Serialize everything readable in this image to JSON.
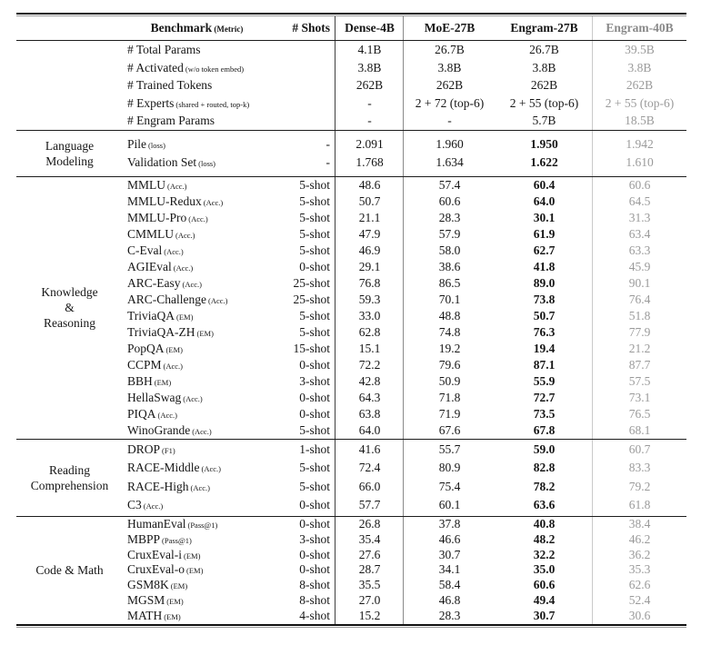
{
  "table": {
    "title_hint": "Benchmark comparison table of Dense, MoE and Engram models",
    "colors": {
      "text": "#161616",
      "muted_column": "#9a9a9a",
      "muted_header": "#8a8a8a",
      "rule_dark": "#101010",
      "vline_dark": "#3f3f3f",
      "vline_mid": "#8a8a8a",
      "vline_light": "#c9c9c9"
    },
    "header": {
      "benchmark": "Benchmark",
      "benchmark_metric": "(Metric)",
      "shots": "# Shots",
      "models": [
        "Dense-4B",
        "MoE-27B",
        "Engram-27B",
        "Engram-40B"
      ]
    },
    "sections": [
      {
        "category_lines": [],
        "bold_engram27": false,
        "rows": [
          {
            "name": "# Total Params",
            "metric": "",
            "shots": "",
            "values": [
              "4.1B",
              "26.7B",
              "26.7B",
              "39.5B"
            ]
          },
          {
            "name": "# Activated",
            "metric": "(w/o token embed)",
            "shots": "",
            "values": [
              "3.8B",
              "3.8B",
              "3.8B",
              "3.8B"
            ]
          },
          {
            "name": "# Trained Tokens",
            "metric": "",
            "shots": "",
            "values": [
              "262B",
              "262B",
              "262B",
              "262B"
            ]
          },
          {
            "name": "# Experts",
            "metric": "(shared + routed, top-k)",
            "shots": "",
            "values": [
              "-",
              "2 + 72 (top-6)",
              "2 + 55 (top-6)",
              "2 + 55 (top-6)"
            ]
          },
          {
            "name": "# Engram Params",
            "metric": "",
            "shots": "",
            "values": [
              "-",
              "-",
              "5.7B",
              "18.5B"
            ]
          }
        ]
      },
      {
        "category_lines": [
          "Language",
          "Modeling"
        ],
        "bold_engram27": true,
        "rows": [
          {
            "name": "Pile",
            "metric": "(loss)",
            "shots": "-",
            "values": [
              "2.091",
              "1.960",
              "1.950",
              "1.942"
            ]
          },
          {
            "name": "Validation Set",
            "metric": "(loss)",
            "shots": "-",
            "values": [
              "1.768",
              "1.634",
              "1.622",
              "1.610"
            ]
          }
        ]
      },
      {
        "category_lines": [
          "Knowledge",
          "&",
          "Reasoning"
        ],
        "bold_engram27": true,
        "rows": [
          {
            "name": "MMLU",
            "metric": "(Acc.)",
            "shots": "5-shot",
            "values": [
              "48.6",
              "57.4",
              "60.4",
              "60.6"
            ]
          },
          {
            "name": "MMLU-Redux",
            "metric": "(Acc.)",
            "shots": "5-shot",
            "values": [
              "50.7",
              "60.6",
              "64.0",
              "64.5"
            ]
          },
          {
            "name": "MMLU-Pro",
            "metric": "(Acc.)",
            "shots": "5-shot",
            "values": [
              "21.1",
              "28.3",
              "30.1",
              "31.3"
            ]
          },
          {
            "name": "CMMLU",
            "metric": "(Acc.)",
            "shots": "5-shot",
            "values": [
              "47.9",
              "57.9",
              "61.9",
              "63.4"
            ]
          },
          {
            "name": "C-Eval",
            "metric": "(Acc.)",
            "shots": "5-shot",
            "values": [
              "46.9",
              "58.0",
              "62.7",
              "63.3"
            ]
          },
          {
            "name": "AGIEval",
            "metric": "(Acc.)",
            "shots": "0-shot",
            "values": [
              "29.1",
              "38.6",
              "41.8",
              "45.9"
            ]
          },
          {
            "name": "ARC-Easy",
            "metric": "(Acc.)",
            "shots": "25-shot",
            "values": [
              "76.8",
              "86.5",
              "89.0",
              "90.1"
            ]
          },
          {
            "name": "ARC-Challenge",
            "metric": "(Acc.)",
            "shots": "25-shot",
            "values": [
              "59.3",
              "70.1",
              "73.8",
              "76.4"
            ]
          },
          {
            "name": "TriviaQA",
            "metric": "(EM)",
            "shots": "5-shot",
            "values": [
              "33.0",
              "48.8",
              "50.7",
              "51.8"
            ]
          },
          {
            "name": "TriviaQA-ZH",
            "metric": "(EM)",
            "shots": "5-shot",
            "values": [
              "62.8",
              "74.8",
              "76.3",
              "77.9"
            ]
          },
          {
            "name": "PopQA",
            "metric": "(EM)",
            "shots": "15-shot",
            "values": [
              "15.1",
              "19.2",
              "19.4",
              "21.2"
            ]
          },
          {
            "name": "CCPM",
            "metric": "(Acc.)",
            "shots": "0-shot",
            "values": [
              "72.2",
              "79.6",
              "87.1",
              "87.7"
            ]
          },
          {
            "name": "BBH",
            "metric": "(EM)",
            "shots": "3-shot",
            "values": [
              "42.8",
              "50.9",
              "55.9",
              "57.5"
            ]
          },
          {
            "name": "HellaSwag",
            "metric": "(Acc.)",
            "shots": "0-shot",
            "values": [
              "64.3",
              "71.8",
              "72.7",
              "73.1"
            ]
          },
          {
            "name": "PIQA",
            "metric": "(Acc.)",
            "shots": "0-shot",
            "values": [
              "63.8",
              "71.9",
              "73.5",
              "76.5"
            ]
          },
          {
            "name": "WinoGrande",
            "metric": "(Acc.)",
            "shots": "5-shot",
            "values": [
              "64.0",
              "67.6",
              "67.8",
              "68.1"
            ]
          }
        ]
      },
      {
        "category_lines": [
          "Reading",
          "Comprehension"
        ],
        "bold_engram27": true,
        "rows": [
          {
            "name": "DROP",
            "metric": "(F1)",
            "shots": "1-shot",
            "values": [
              "41.6",
              "55.7",
              "59.0",
              "60.7"
            ]
          },
          {
            "name": "RACE-Middle",
            "metric": "(Acc.)",
            "shots": "5-shot",
            "values": [
              "72.4",
              "80.9",
              "82.8",
              "83.3"
            ]
          },
          {
            "name": "RACE-High",
            "metric": "(Acc.)",
            "shots": "5-shot",
            "values": [
              "66.0",
              "75.4",
              "78.2",
              "79.2"
            ]
          },
          {
            "name": "C3",
            "metric": "(Acc.)",
            "shots": "0-shot",
            "values": [
              "57.7",
              "60.1",
              "63.6",
              "61.8"
            ]
          }
        ]
      },
      {
        "category_lines": [
          "Code & Math"
        ],
        "bold_engram27": true,
        "rows": [
          {
            "name": "HumanEval",
            "metric": "(Pass@1)",
            "shots": "0-shot",
            "values": [
              "26.8",
              "37.8",
              "40.8",
              "38.4"
            ]
          },
          {
            "name": "MBPP",
            "metric": "(Pass@1)",
            "shots": "3-shot",
            "values": [
              "35.4",
              "46.6",
              "48.2",
              "46.2"
            ]
          },
          {
            "name": "CruxEval-i",
            "metric": "(EM)",
            "shots": "0-shot",
            "values": [
              "27.6",
              "30.7",
              "32.2",
              "36.2"
            ]
          },
          {
            "name": "CruxEval-o",
            "metric": "(EM)",
            "shots": "0-shot",
            "values": [
              "28.7",
              "34.1",
              "35.0",
              "35.3"
            ]
          },
          {
            "name": "GSM8K",
            "metric": "(EM)",
            "shots": "8-shot",
            "values": [
              "35.5",
              "58.4",
              "60.6",
              "62.6"
            ]
          },
          {
            "name": "MGSM",
            "metric": "(EM)",
            "shots": "8-shot",
            "values": [
              "27.0",
              "46.8",
              "49.4",
              "52.4"
            ]
          },
          {
            "name": "MATH",
            "metric": "(EM)",
            "shots": "4-shot",
            "values": [
              "15.2",
              "28.3",
              "30.7",
              "30.6"
            ]
          }
        ]
      }
    ]
  }
}
